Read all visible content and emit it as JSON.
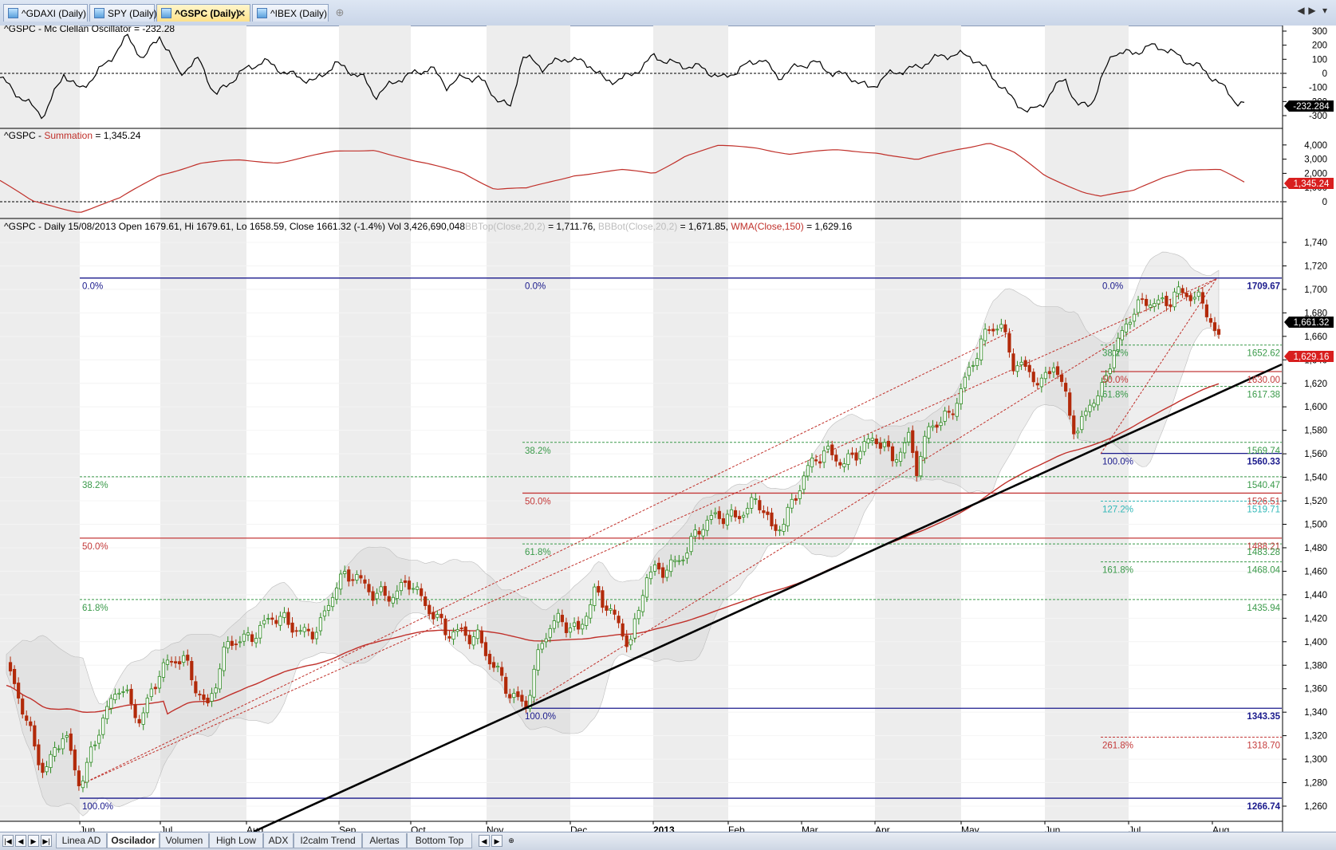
{
  "tabs": [
    {
      "label": "^GDAXI (Daily)"
    },
    {
      "label": "SPY (Daily)"
    },
    {
      "label": "^GSPC (Daily)",
      "active": true
    },
    {
      "label": "^IBEX (Daily)"
    }
  ],
  "tab_close_glyph": "✕",
  "new_tab_glyph": "⊕",
  "tab_scroll": {
    "left": "◀",
    "right": "▶",
    "menu": "▾"
  },
  "colors": {
    "up": "#2e8b22",
    "down": "#b22a0a",
    "wma": "#c0302a",
    "fib_blue": "#1a1a8c",
    "fib_red": "#c43a3a",
    "fib_green": "#3a9a4a",
    "fib_cyan": "#32b8b8",
    "summation": "#c0302a",
    "osc": "#000000"
  },
  "panes": {
    "oscillator": {
      "title": "^GSPC - Mc Clellan Oscillator = -232.28",
      "last_value": "-232.284",
      "ticks": [
        "300",
        "200",
        "100",
        "0",
        "-100",
        "-200",
        "-300"
      ]
    },
    "summation": {
      "title_prefix": "^GSPC - ",
      "title_series": "Summation",
      "title_suffix": " = 1,345.24",
      "last_value": "1,345.24",
      "ticks": [
        "4,000",
        "3,000",
        "2,000",
        "1,000",
        "0"
      ]
    },
    "price": {
      "title_main": "^GSPC - Daily 15/08/2013 Open 1679.61, Hi 1679.61, Lo 1658.59, Close 1661.32 (-1.4%) Vol 3,426,690,048",
      "title_bbtop": "BBTop(Close,20,2)",
      "title_bbtop_val": " = 1,711.76, ",
      "title_bbbot": "BBBot(Close,20,2)",
      "title_bbbot_val": " = 1,671.85, ",
      "title_wma": "WMA(Close,150)",
      "title_wma_val": " = 1,629.16",
      "last_close": "1,661.32",
      "wma_last": "1,629.16",
      "ticks": [
        "1,740",
        "1,720",
        "1,700",
        "1,680",
        "1,660",
        "1,640",
        "1,620",
        "1,600",
        "1,580",
        "1,560",
        "1,540",
        "1,520",
        "1,500",
        "1,480",
        "1,460",
        "1,440",
        "1,420",
        "1,400",
        "1,380",
        "1,360",
        "1,340",
        "1,320",
        "1,300",
        "1,280",
        "1,260"
      ],
      "fib_labels": [
        {
          "text": "0.0%",
          "kind": "blue"
        },
        {
          "text": "38.2%",
          "kind": "green"
        },
        {
          "text": "50.0%",
          "kind": "red"
        },
        {
          "text": "61.8%",
          "kind": "green"
        },
        {
          "text": "100.0%",
          "kind": "blue"
        },
        {
          "text": "0.0%",
          "kind": "blue"
        },
        {
          "text": "38.2%",
          "kind": "green"
        },
        {
          "text": "50.0%",
          "kind": "red"
        },
        {
          "text": "61.8%",
          "kind": "green"
        },
        {
          "text": "100.0%",
          "kind": "blue"
        },
        {
          "text": "0.0%",
          "kind": "blue"
        },
        {
          "text": "38.2%",
          "kind": "green"
        },
        {
          "text": "50.0%",
          "kind": "red"
        },
        {
          "text": "61.8%",
          "kind": "green"
        },
        {
          "text": "100.0%",
          "kind": "blue"
        },
        {
          "text": "127.2%",
          "kind": "cyan"
        },
        {
          "text": "161.8%",
          "kind": "green"
        },
        {
          "text": "261.8%",
          "kind": "red"
        }
      ],
      "level_values": [
        {
          "text": "1709.67",
          "kind": "blue"
        },
        {
          "text": "1652.62",
          "kind": "green"
        },
        {
          "text": "1630.00",
          "kind": "red"
        },
        {
          "text": "1617.38",
          "kind": "green"
        },
        {
          "text": "1569.74",
          "kind": "green"
        },
        {
          "text": "1560.33",
          "kind": "blue"
        },
        {
          "text": "1540.47",
          "kind": "green"
        },
        {
          "text": "1526.51",
          "kind": "red"
        },
        {
          "text": "1519.71",
          "kind": "cyan"
        },
        {
          "text": "1488.21",
          "kind": "red"
        },
        {
          "text": "1483.28",
          "kind": "green"
        },
        {
          "text": "1468.04",
          "kind": "green"
        },
        {
          "text": "1435.94",
          "kind": "green"
        },
        {
          "text": "1343.35",
          "kind": "blue"
        },
        {
          "text": "1318.70",
          "kind": "red"
        },
        {
          "text": "1266.74",
          "kind": "blue"
        }
      ]
    }
  },
  "months": [
    "Jun",
    "Jul",
    "Aug",
    "Sep",
    "Oct",
    "Nov",
    "Dec",
    "2013",
    "Feb",
    "Mar",
    "Apr",
    "May",
    "Jun",
    "Jul",
    "Aug"
  ],
  "sheet_nav": [
    "|◀",
    "◀",
    "▶",
    "▶|"
  ],
  "sheet_tabs": [
    "Linea AD",
    "Oscilador",
    "Volumen",
    "High Low",
    "ADX",
    "I2calm Trend",
    "Alertas",
    "Bottom Top"
  ],
  "active_sheet": "Oscilador",
  "sheet_extra": {
    "left": "◀",
    "right": "▶",
    "add": "⊕"
  }
}
